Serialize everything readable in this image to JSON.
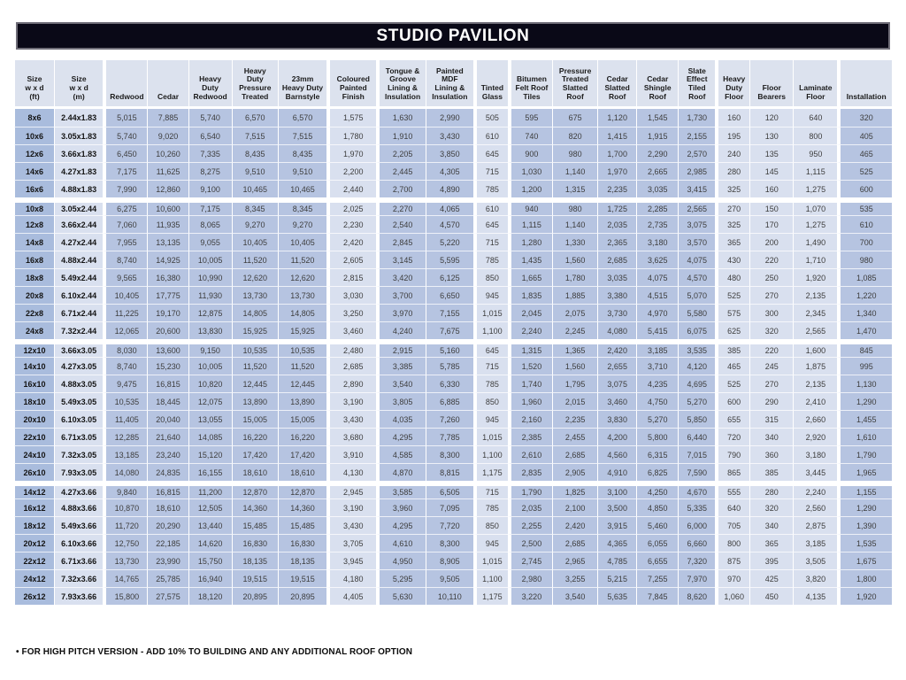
{
  "title_bar": {
    "title": "STUDIO PAVILION"
  },
  "footnote": "• FOR HIGH PITCH VERSION - ADD 10% TO BUILDING AND ANY ADDITIONAL ROOF OPTION",
  "colors": {
    "header_bar": "#0a0917",
    "cell_medium": "#b6c4e1",
    "cell_light": "#d9e0ef",
    "cell_dark": "#a9bcdd",
    "header_cell": "#dce2ee",
    "data_text": "#3d3d3d",
    "page_bg": "#ffffff"
  },
  "table": {
    "columns": [
      {
        "label": "Size\nw x d\n(ft)",
        "shade": "dark",
        "width": 44,
        "gap_before": false
      },
      {
        "label": "Size\nw x d\n(m)",
        "shade": "light",
        "width": 54,
        "gap_before": false
      },
      {
        "label": "Redwood",
        "shade": "med",
        "width": 49,
        "gap_before": true
      },
      {
        "label": "Cedar",
        "shade": "med",
        "width": 45,
        "gap_before": false
      },
      {
        "label": "Heavy\nDuty\nRedwood",
        "shade": "med",
        "width": 48,
        "gap_before": false
      },
      {
        "label": "Heavy\nDuty\nPressure\nTreated",
        "shade": "med",
        "width": 51,
        "gap_before": false
      },
      {
        "label": "23mm\nHeavy Duty\nBarnstyle",
        "shade": "med",
        "width": 54,
        "gap_before": false
      },
      {
        "label": "Coloured\nPainted\nFinish",
        "shade": "light",
        "width": 55,
        "gap_before": true
      },
      {
        "label": "Tongue &\nGroove\nLining &\nInsulation",
        "shade": "med",
        "width": 54,
        "gap_before": true
      },
      {
        "label": "Painted\nMDF\nLining &\nInsulation",
        "shade": "med",
        "width": 53,
        "gap_before": false
      },
      {
        "label": "Tinted\nGlass",
        "shade": "light",
        "width": 38,
        "gap_before": true
      },
      {
        "label": "Bitumen\nFelt Roof\nTiles",
        "shade": "med",
        "width": 49,
        "gap_before": true
      },
      {
        "label": "Pressure\nTreated\nSlatted\nRoof",
        "shade": "med",
        "width": 50,
        "gap_before": false
      },
      {
        "label": "Cedar\nSlatted\nRoof",
        "shade": "med",
        "width": 43,
        "gap_before": false
      },
      {
        "label": "Cedar\nShingle\nRoof",
        "shade": "med",
        "width": 46,
        "gap_before": false
      },
      {
        "label": "Slate\nEffect\nTiled\nRoof",
        "shade": "med",
        "width": 41,
        "gap_before": false
      },
      {
        "label": "Heavy\nDuty\nFloor",
        "shade": "light",
        "width": 38,
        "gap_before": true
      },
      {
        "label": "Floor\nBearers",
        "shade": "light",
        "width": 48,
        "gap_before": false
      },
      {
        "label": "Laminate\nFloor",
        "shade": "light",
        "width": 49,
        "gap_before": false
      },
      {
        "label": "Installation",
        "shade": "med",
        "width": 60,
        "gap_before": true
      }
    ],
    "row_groups": [
      {
        "rows": [
          [
            "8x6",
            "2.44x1.83",
            "5,015",
            "7,885",
            "5,740",
            "6,570",
            "6,570",
            "1,575",
            "1,630",
            "2,990",
            "505",
            "595",
            "675",
            "1,120",
            "1,545",
            "1,730",
            "160",
            "120",
            "640",
            "320"
          ],
          [
            "10x6",
            "3.05x1.83",
            "5,740",
            "9,020",
            "6,540",
            "7,515",
            "7,515",
            "1,780",
            "1,910",
            "3,430",
            "610",
            "740",
            "820",
            "1,415",
            "1,915",
            "2,155",
            "195",
            "130",
            "800",
            "405"
          ],
          [
            "12x6",
            "3.66x1.83",
            "6,450",
            "10,260",
            "7,335",
            "8,435",
            "8,435",
            "1,970",
            "2,205",
            "3,850",
            "645",
            "900",
            "980",
            "1,700",
            "2,290",
            "2,570",
            "240",
            "135",
            "950",
            "465"
          ],
          [
            "14x6",
            "4.27x1.83",
            "7,175",
            "11,625",
            "8,275",
            "9,510",
            "9,510",
            "2,200",
            "2,445",
            "4,305",
            "715",
            "1,030",
            "1,140",
            "1,970",
            "2,665",
            "2,985",
            "280",
            "145",
            "1,115",
            "525"
          ],
          [
            "16x6",
            "4.88x1.83",
            "7,990",
            "12,860",
            "9,100",
            "10,465",
            "10,465",
            "2,440",
            "2,700",
            "4,890",
            "785",
            "1,200",
            "1,315",
            "2,235",
            "3,035",
            "3,415",
            "325",
            "160",
            "1,275",
            "600"
          ]
        ]
      },
      {
        "rows": [
          [
            "10x8",
            "3.05x2.44",
            "6,275",
            "10,600",
            "7,175",
            "8,345",
            "8,345",
            "2,025",
            "2,270",
            "4,065",
            "610",
            "940",
            "980",
            "1,725",
            "2,285",
            "2,565",
            "270",
            "150",
            "1,070",
            "535"
          ],
          [
            "12x8",
            "3.66x2.44",
            "7,060",
            "11,935",
            "8,065",
            "9,270",
            "9,270",
            "2,230",
            "2,540",
            "4,570",
            "645",
            "1,115",
            "1,140",
            "2,035",
            "2,735",
            "3,075",
            "325",
            "170",
            "1,275",
            "610"
          ],
          [
            "14x8",
            "4.27x2.44",
            "7,955",
            "13,135",
            "9,055",
            "10,405",
            "10,405",
            "2,420",
            "2,845",
            "5,220",
            "715",
            "1,280",
            "1,330",
            "2,365",
            "3,180",
            "3,570",
            "365",
            "200",
            "1,490",
            "700"
          ],
          [
            "16x8",
            "4.88x2.44",
            "8,740",
            "14,925",
            "10,005",
            "11,520",
            "11,520",
            "2,605",
            "3,145",
            "5,595",
            "785",
            "1,435",
            "1,560",
            "2,685",
            "3,625",
            "4,075",
            "430",
            "220",
            "1,710",
            "980"
          ],
          [
            "18x8",
            "5.49x2.44",
            "9,565",
            "16,380",
            "10,990",
            "12,620",
            "12,620",
            "2,815",
            "3,420",
            "6,125",
            "850",
            "1,665",
            "1,780",
            "3,035",
            "4,075",
            "4,570",
            "480",
            "250",
            "1,920",
            "1,085"
          ],
          [
            "20x8",
            "6.10x2.44",
            "10,405",
            "17,775",
            "11,930",
            "13,730",
            "13,730",
            "3,030",
            "3,700",
            "6,650",
            "945",
            "1,835",
            "1,885",
            "3,380",
            "4,515",
            "5,070",
            "525",
            "270",
            "2,135",
            "1,220"
          ],
          [
            "22x8",
            "6.71x2.44",
            "11,225",
            "19,170",
            "12,875",
            "14,805",
            "14,805",
            "3,250",
            "3,970",
            "7,155",
            "1,015",
            "2,045",
            "2,075",
            "3,730",
            "4,970",
            "5,580",
            "575",
            "300",
            "2,345",
            "1,340"
          ],
          [
            "24x8",
            "7.32x2.44",
            "12,065",
            "20,600",
            "13,830",
            "15,925",
            "15,925",
            "3,460",
            "4,240",
            "7,675",
            "1,100",
            "2,240",
            "2,245",
            "4,080",
            "5,415",
            "6,075",
            "625",
            "320",
            "2,565",
            "1,470"
          ]
        ]
      },
      {
        "rows": [
          [
            "12x10",
            "3.66x3.05",
            "8,030",
            "13,600",
            "9,150",
            "10,535",
            "10,535",
            "2,480",
            "2,915",
            "5,160",
            "645",
            "1,315",
            "1,365",
            "2,420",
            "3,185",
            "3,535",
            "385",
            "220",
            "1,600",
            "845"
          ],
          [
            "14x10",
            "4.27x3.05",
            "8,740",
            "15,230",
            "10,005",
            "11,520",
            "11,520",
            "2,685",
            "3,385",
            "5,785",
            "715",
            "1,520",
            "1,560",
            "2,655",
            "3,710",
            "4,120",
            "465",
            "245",
            "1,875",
            "995"
          ],
          [
            "16x10",
            "4.88x3.05",
            "9,475",
            "16,815",
            "10,820",
            "12,445",
            "12,445",
            "2,890",
            "3,540",
            "6,330",
            "785",
            "1,740",
            "1,795",
            "3,075",
            "4,235",
            "4,695",
            "525",
            "270",
            "2,135",
            "1,130"
          ],
          [
            "18x10",
            "5.49x3.05",
            "10,535",
            "18,445",
            "12,075",
            "13,890",
            "13,890",
            "3,190",
            "3,805",
            "6,885",
            "850",
            "1,960",
            "2,015",
            "3,460",
            "4,750",
            "5,270",
            "600",
            "290",
            "2,410",
            "1,290"
          ],
          [
            "20x10",
            "6.10x3.05",
            "11,405",
            "20,040",
            "13,055",
            "15,005",
            "15,005",
            "3,430",
            "4,035",
            "7,260",
            "945",
            "2,160",
            "2,235",
            "3,830",
            "5,270",
            "5,850",
            "655",
            "315",
            "2,660",
            "1,455"
          ],
          [
            "22x10",
            "6.71x3.05",
            "12,285",
            "21,640",
            "14,085",
            "16,220",
            "16,220",
            "3,680",
            "4,295",
            "7,785",
            "1,015",
            "2,385",
            "2,455",
            "4,200",
            "5,800",
            "6,440",
            "720",
            "340",
            "2,920",
            "1,610"
          ],
          [
            "24x10",
            "7.32x3.05",
            "13,185",
            "23,240",
            "15,120",
            "17,420",
            "17,420",
            "3,910",
            "4,585",
            "8,300",
            "1,100",
            "2,610",
            "2,685",
            "4,560",
            "6,315",
            "7,015",
            "790",
            "360",
            "3,180",
            "1,790"
          ],
          [
            "26x10",
            "7.93x3.05",
            "14,080",
            "24,835",
            "16,155",
            "18,610",
            "18,610",
            "4,130",
            "4,870",
            "8,815",
            "1,175",
            "2,835",
            "2,905",
            "4,910",
            "6,825",
            "7,590",
            "865",
            "385",
            "3,445",
            "1,965"
          ]
        ]
      },
      {
        "rows": [
          [
            "14x12",
            "4.27x3.66",
            "9,840",
            "16,815",
            "11,200",
            "12,870",
            "12,870",
            "2,945",
            "3,585",
            "6,505",
            "715",
            "1,790",
            "1,825",
            "3,100",
            "4,250",
            "4,670",
            "555",
            "280",
            "2,240",
            "1,155"
          ],
          [
            "16x12",
            "4.88x3.66",
            "10,870",
            "18,610",
            "12,505",
            "14,360",
            "14,360",
            "3,190",
            "3,960",
            "7,095",
            "785",
            "2,035",
            "2,100",
            "3,500",
            "4,850",
            "5,335",
            "640",
            "320",
            "2,560",
            "1,290"
          ],
          [
            "18x12",
            "5.49x3.66",
            "11,720",
            "20,290",
            "13,440",
            "15,485",
            "15,485",
            "3,430",
            "4,295",
            "7,720",
            "850",
            "2,255",
            "2,420",
            "3,915",
            "5,460",
            "6,000",
            "705",
            "340",
            "2,875",
            "1,390"
          ],
          [
            "20x12",
            "6.10x3.66",
            "12,750",
            "22,185",
            "14,620",
            "16,830",
            "16,830",
            "3,705",
            "4,610",
            "8,300",
            "945",
            "2,500",
            "2,685",
            "4,365",
            "6,055",
            "6,660",
            "800",
            "365",
            "3,185",
            "1,535"
          ],
          [
            "22x12",
            "6.71x3.66",
            "13,730",
            "23,990",
            "15,750",
            "18,135",
            "18,135",
            "3,945",
            "4,950",
            "8,905",
            "1,015",
            "2,745",
            "2,965",
            "4,785",
            "6,655",
            "7,320",
            "875",
            "395",
            "3,505",
            "1,675"
          ],
          [
            "24x12",
            "7.32x3.66",
            "14,765",
            "25,785",
            "16,940",
            "19,515",
            "19,515",
            "4,180",
            "5,295",
            "9,505",
            "1,100",
            "2,980",
            "3,255",
            "5,215",
            "7,255",
            "7,970",
            "970",
            "425",
            "3,820",
            "1,800"
          ],
          [
            "26x12",
            "7.93x3.66",
            "15,800",
            "27,575",
            "18,120",
            "20,895",
            "20,895",
            "4,405",
            "5,630",
            "10,110",
            "1,175",
            "3,220",
            "3,540",
            "5,635",
            "7,845",
            "8,620",
            "1,060",
            "450",
            "4,135",
            "1,920"
          ]
        ]
      }
    ]
  }
}
